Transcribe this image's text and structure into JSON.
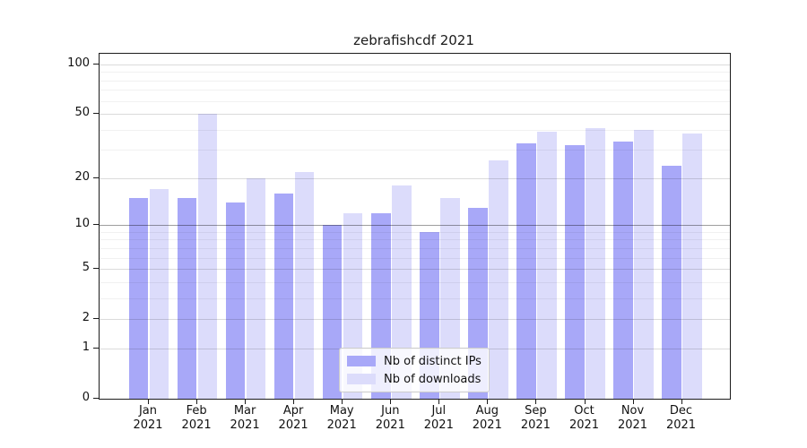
{
  "figure": {
    "background": "#ffffff"
  },
  "chart_data": {
    "type": "bar",
    "title": "zebrafishcdf 2021",
    "year_label": "2021",
    "months": [
      "Jan",
      "Feb",
      "Mar",
      "Apr",
      "May",
      "Jun",
      "Jul",
      "Aug",
      "Sep",
      "Oct",
      "Nov",
      "Dec"
    ],
    "series": [
      {
        "name": "Nb of distinct IPs",
        "key": "distinct-ips",
        "color": "#a8a8f8",
        "values": [
          15,
          15,
          14,
          16,
          10,
          12,
          9,
          13,
          33,
          32,
          34,
          24
        ]
      },
      {
        "name": "Nb of downloads",
        "key": "downloads",
        "color": "#dcdcfb",
        "values": [
          17,
          50,
          20,
          22,
          12,
          18,
          15,
          26,
          39,
          41,
          40,
          38
        ]
      }
    ],
    "yscale": "log1p",
    "ylim": [
      0,
      116
    ],
    "yticks": [
      {
        "value": 100,
        "label": "100"
      },
      {
        "value": 50,
        "label": "50"
      },
      {
        "value": 20,
        "label": "20"
      },
      {
        "value": 10,
        "label": "10"
      },
      {
        "value": 5,
        "label": "5"
      },
      {
        "value": 2,
        "label": "2"
      },
      {
        "value": 1,
        "label": "1"
      },
      {
        "value": 0,
        "label": "0"
      }
    ],
    "minor_gridlines": [
      3,
      4,
      6,
      7,
      8,
      9,
      30,
      40,
      60,
      70,
      80,
      90
    ],
    "grid": true,
    "legend_position": "lower center",
    "colors": {
      "major_grid": "rgba(0,0,0,0.14)",
      "minor_grid": "rgba(0,0,0,0.055)",
      "emphasis_grid_value": 10,
      "emphasis_grid": "rgba(0,0,0,0.38)",
      "axis": "#1c1c1c",
      "text": "#111111"
    }
  }
}
